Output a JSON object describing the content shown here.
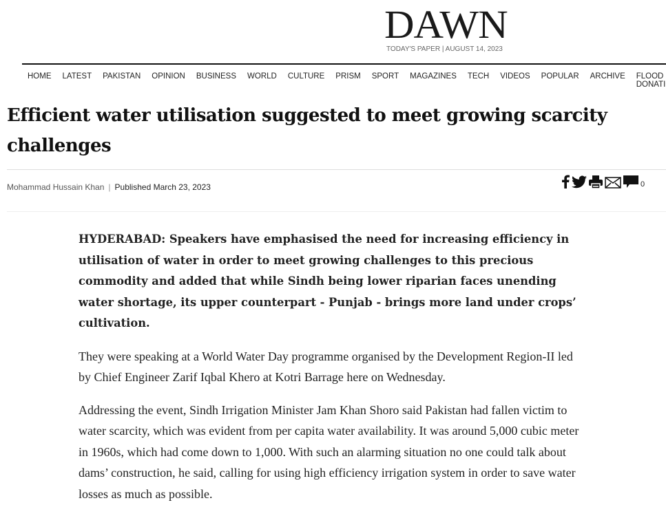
{
  "header": {
    "logo": "DAWN",
    "todays_paper": "TODAY'S PAPER | AUGUST 14, 2023"
  },
  "nav": [
    "HOME",
    "LATEST",
    "PAKISTAN",
    "OPINION",
    "BUSINESS",
    "WORLD",
    "CULTURE",
    "PRISM",
    "SPORT",
    "MAGAZINES",
    "TECH",
    "VIDEOS",
    "POPULAR",
    "ARCHIVE",
    "FLOOD DONATIONS"
  ],
  "article": {
    "title": "Efficient water utilisation suggested to meet growing scarcity challenges",
    "author": "Mohammad Hussain Khan",
    "separator": "|",
    "published": "Published March 23, 2023",
    "share_icons": [
      "facebook-icon",
      "twitter-icon",
      "print-icon",
      "email-icon",
      "comment-icon"
    ],
    "comment_count": "0",
    "paragraphs": [
      "HYDERABAD: Speakers have emphasised the need for increasing efficiency in utilisation of water in order to meet growing challenges to this precious commodity and added that while Sindh being lower riparian faces unending water shortage, its upper counterpart - Punjab - brings more land under crops’ cultivation.",
      "They were speaking at a World Water Day programme organised by the Development Region-II led by Chief Engineer Zarif Iqbal Khero at Kotri Barrage here on Wednesday.",
      "Addressing the event, Sindh Irrigation Minister Jam Khan Shoro said Pakistan had fallen victim to water scarcity, which was evident from per capita water availability. It was around 5,000 cubic meter in 1960s, which had come down to 1,000. With such an alarming situation no one could talk about dams’ construction, he said, calling for using high efficiency irrigation system in order to save water losses as much as possible."
    ]
  }
}
